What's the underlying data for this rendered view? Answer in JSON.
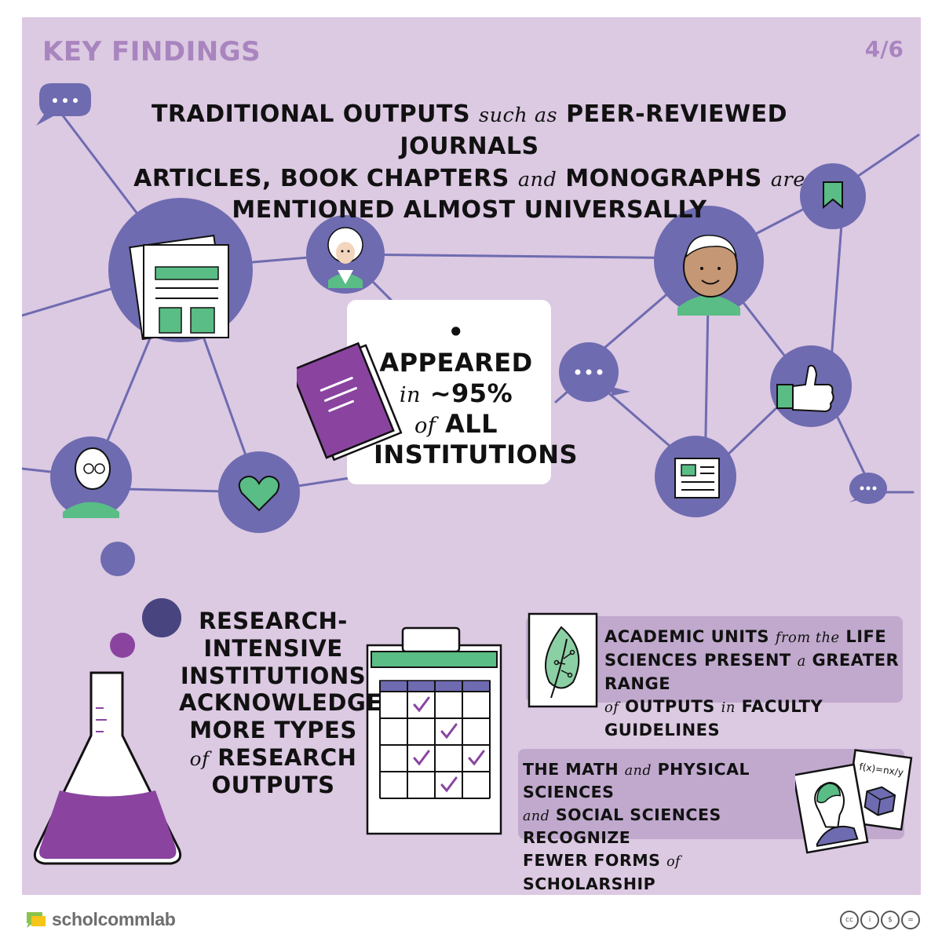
{
  "header": {
    "title": "KEY FINDINGS",
    "page": "4/6"
  },
  "headline": {
    "l1a": "TRADITIONAL OUTPUTS",
    "l1b": "such as",
    "l1c": "PEER-REVIEWED JOURNALS",
    "l2a": "ARTICLES, BOOK CHAPTERS",
    "l2b": "and",
    "l2c": "MONOGRAPHS",
    "l2d": "are",
    "l3": "MENTIONED ALMOST UNIVERSALLY"
  },
  "stat": {
    "bullet": "•",
    "l1": "APPEARED",
    "l2a": "in",
    "l2b": "~95%",
    "l3a": "of",
    "l3b": "ALL",
    "l4": "INSTITUTIONS"
  },
  "research": {
    "l1": "RESEARCH-",
    "l2": "INTENSIVE",
    "l3": "INSTITUTIONS",
    "l4": "ACKNOWLEDGE",
    "l5": "MORE TYPES",
    "l6a": "of",
    "l6b": "RESEARCH",
    "l7": "OUTPUTS"
  },
  "life": {
    "l1a": "ACADEMIC UNITS",
    "l1b": "from the",
    "l1c": "LIFE",
    "l2a": "SCIENCES PRESENT",
    "l2b": "a",
    "l2c": "GREATER RANGE",
    "l3a": "of",
    "l3b": "OUTPUTS",
    "l3c": "in",
    "l3d": "FACULTY GUIDELINES"
  },
  "math": {
    "l1a": "THE MATH",
    "l1b": "and",
    "l1c": "PHYSICAL SCIENCES",
    "l2a": "and",
    "l2b": "SOCIAL SCIENCES RECOGNIZE",
    "l3a": "FEWER FORMS",
    "l3b": "of",
    "l3c": "SCHOLARSHIP",
    "formula": "f(x)=nx/y"
  },
  "footer": {
    "logo_a": "schol",
    "logo_b": "comm",
    "logo_c": "lab",
    "cc": [
      "cc",
      "i",
      "$",
      "="
    ]
  },
  "colors": {
    "panel": "#dcc9e2",
    "node": "#6e6bb0",
    "green": "#59bd85",
    "purple": "#8a44a0",
    "accent": "#a985bf",
    "box": "#c0a9cd"
  }
}
